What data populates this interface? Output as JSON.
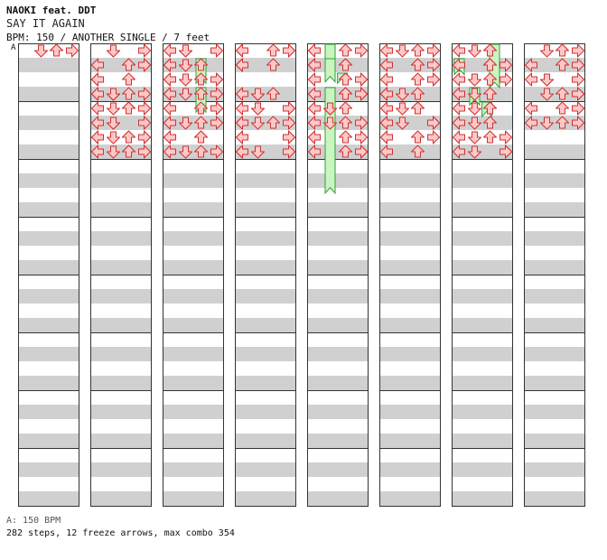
{
  "header": {
    "artist": "NAOKI feat. DDT",
    "title": "SAY IT AGAIN",
    "meta": "BPM: 150 / ANOTHER SINGLE / 7 feet",
    "marker": "A"
  },
  "footer": {
    "bpm_legend": "A: 150 BPM",
    "stats": "282 steps, 12 freeze arrows, max combo 354"
  },
  "colors": {
    "note_red_fill": "#ffc8c8",
    "note_red_stroke": "#cc3333",
    "note_blue_fill": "#9fd0ff",
    "note_blue_stroke": "#2a6fc0",
    "freeze_fill": "#c8f5c0",
    "freeze_stroke": "#3a9a3a",
    "stripe": "#d0d0d0"
  },
  "chart_data": {
    "type": "step-chart",
    "lanes": [
      "left",
      "down",
      "up",
      "right"
    ],
    "columns": 8,
    "measures_per_column": 8,
    "freezes": [
      [
        3,
        2,
        1,
        1.7
      ],
      [
        3,
        2,
        3,
        1.7
      ],
      [
        5,
        1,
        0,
        1.4
      ],
      [
        5,
        1,
        1,
        1.6
      ],
      [
        5,
        1,
        3,
        7.3
      ],
      [
        5,
        1.8,
        2,
        0.7
      ],
      [
        6,
        7,
        1,
        0.9
      ],
      [
        6,
        7,
        0,
        3.0
      ],
      [
        7,
        0,
        1,
        1.1
      ],
      [
        7,
        1,
        3,
        1.2
      ],
      [
        7,
        1.8,
        4,
        1.0
      ],
      [
        8,
        6.1,
        3,
        2.2
      ]
    ],
    "notes": [
      [
        1,
        0,
        0,
        3
      ],
      [
        1,
        1,
        0,
        2
      ],
      [
        1,
        2,
        0,
        2
      ],
      [
        1,
        4,
        0,
        1
      ],
      [
        2,
        0,
        0,
        1
      ],
      [
        2,
        1,
        0,
        1
      ],
      [
        2,
        2,
        0,
        3
      ],
      [
        2,
        0,
        1,
        3
      ],
      [
        2,
        0.5,
        1,
        2
      ],
      [
        2,
        1,
        1,
        3
      ],
      [
        2,
        2,
        1,
        0
      ],
      [
        2,
        2.5,
        1,
        2
      ],
      [
        2,
        0,
        2,
        0
      ],
      [
        2,
        1,
        2,
        2
      ],
      [
        2,
        2,
        2,
        0
      ],
      [
        2,
        3,
        2,
        0
      ],
      [
        2,
        0,
        3,
        0
      ],
      [
        2,
        0,
        3,
        1
      ],
      [
        2,
        1,
        3,
        2
      ],
      [
        2,
        1,
        3,
        3
      ],
      [
        2,
        2,
        3,
        0
      ],
      [
        2,
        2,
        3,
        1
      ],
      [
        2,
        3,
        3,
        1
      ],
      [
        2,
        0,
        4,
        2
      ],
      [
        2,
        0,
        4,
        3
      ],
      [
        2,
        1,
        4,
        1
      ],
      [
        2,
        1,
        4,
        2
      ],
      [
        2,
        2,
        4,
        2
      ],
      [
        2,
        3,
        4,
        0
      ],
      [
        2,
        3,
        4,
        3
      ],
      [
        2,
        0,
        5,
        0
      ],
      [
        2,
        1,
        5,
        1
      ],
      [
        2,
        2,
        5,
        3
      ],
      [
        2,
        3,
        5,
        1
      ],
      [
        2,
        0,
        6,
        0
      ],
      [
        2,
        1,
        6,
        1
      ],
      [
        2,
        1,
        6,
        2
      ],
      [
        2,
        2,
        6,
        2
      ],
      [
        2,
        2,
        6,
        3
      ],
      [
        2,
        3,
        6,
        0
      ],
      [
        2,
        3,
        6,
        3
      ],
      [
        2,
        0,
        7,
        0
      ],
      [
        2,
        1,
        7,
        2
      ],
      [
        2,
        2,
        7,
        2
      ],
      [
        2,
        2,
        7,
        3
      ],
      [
        2,
        3,
        7,
        1
      ],
      [
        3,
        0,
        0,
        3
      ],
      [
        3,
        0.5,
        0,
        1
      ],
      [
        3,
        1,
        0,
        0
      ],
      [
        3,
        2,
        0,
        1
      ],
      [
        3,
        0,
        1,
        0
      ],
      [
        3,
        0.5,
        1,
        0
      ],
      [
        3,
        1,
        1,
        1
      ],
      [
        3,
        1,
        1,
        2
      ],
      [
        3,
        2,
        1,
        0
      ],
      [
        3,
        3,
        1,
        1
      ],
      [
        3,
        0,
        2,
        0
      ],
      [
        3,
        0,
        2,
        1
      ],
      [
        3,
        1,
        2,
        0
      ],
      [
        3,
        1,
        2,
        2
      ],
      [
        3,
        2,
        2,
        3
      ],
      [
        3,
        3,
        2,
        3
      ],
      [
        3,
        0,
        3,
        0
      ],
      [
        3,
        1,
        3,
        1
      ],
      [
        3,
        1,
        3,
        3
      ],
      [
        3,
        2,
        3,
        0
      ],
      [
        3,
        2.5,
        3,
        2
      ],
      [
        3,
        3,
        3,
        0
      ],
      [
        3,
        0,
        4,
        0
      ],
      [
        3,
        1,
        4,
        3
      ],
      [
        3,
        2,
        4,
        2
      ],
      [
        3,
        2.5,
        4,
        0
      ],
      [
        3,
        3,
        4,
        3
      ],
      [
        3,
        0,
        5,
        0
      ],
      [
        3,
        0.5,
        5,
        1
      ],
      [
        3,
        1,
        5,
        2
      ],
      [
        3,
        2,
        5,
        0
      ],
      [
        3,
        2,
        5,
        3
      ],
      [
        3,
        0,
        6,
        0
      ],
      [
        3,
        1,
        6,
        0
      ],
      [
        3,
        2,
        6,
        2
      ],
      [
        3,
        3,
        6,
        2
      ],
      [
        3,
        0,
        7,
        0
      ],
      [
        3,
        1,
        7,
        1
      ],
      [
        3,
        2,
        7,
        2
      ],
      [
        3,
        3,
        7,
        3
      ],
      [
        4,
        0,
        0,
        2
      ],
      [
        4,
        0,
        0,
        3
      ],
      [
        4,
        1,
        0,
        0
      ],
      [
        4,
        1.5,
        0,
        3
      ],
      [
        4,
        2,
        0,
        0
      ],
      [
        4,
        3,
        0,
        0
      ],
      [
        4,
        0,
        1,
        0
      ],
      [
        4,
        0.5,
        1,
        0
      ],
      [
        4,
        1,
        1,
        2
      ],
      [
        4,
        3,
        1,
        0
      ],
      [
        4,
        0,
        3,
        1
      ],
      [
        4,
        0.5,
        3,
        1
      ],
      [
        4,
        1,
        3,
        0
      ],
      [
        4,
        1.5,
        3,
        2
      ],
      [
        4,
        2,
        3,
        1
      ],
      [
        4,
        0,
        4,
        1
      ],
      [
        4,
        0,
        4,
        3
      ],
      [
        4,
        1,
        4,
        3
      ],
      [
        4,
        1.5,
        4,
        1
      ],
      [
        4,
        2,
        4,
        0
      ],
      [
        4,
        2,
        4,
        3
      ],
      [
        4,
        0,
        5,
        0
      ],
      [
        4,
        0,
        5,
        1
      ],
      [
        4,
        1,
        5,
        3
      ],
      [
        4,
        2,
        5,
        2
      ],
      [
        4,
        3,
        5,
        0
      ],
      [
        4,
        0,
        6,
        0
      ],
      [
        4,
        1,
        6,
        3
      ],
      [
        4,
        2,
        6,
        3
      ],
      [
        4,
        3,
        6,
        0
      ],
      [
        4,
        0,
        7,
        0
      ],
      [
        4,
        1,
        7,
        1
      ],
      [
        4,
        2,
        7,
        3
      ],
      [
        4,
        3,
        7,
        0
      ],
      [
        5,
        0,
        0,
        0
      ],
      [
        5,
        1,
        0,
        2
      ],
      [
        5,
        2,
        0,
        3
      ],
      [
        5,
        3,
        0,
        0
      ],
      [
        5,
        0,
        1,
        2
      ],
      [
        5,
        1,
        1,
        0
      ],
      [
        5,
        2,
        1,
        2
      ],
      [
        5,
        3,
        1,
        0
      ],
      [
        5,
        0,
        2,
        0
      ],
      [
        5,
        1,
        2,
        2
      ],
      [
        5,
        2,
        2,
        3
      ],
      [
        5,
        3,
        2,
        2
      ],
      [
        5,
        3,
        2,
        3
      ],
      [
        5,
        0,
        3,
        0
      ],
      [
        5,
        1,
        3,
        2
      ],
      [
        5,
        2,
        3,
        2
      ],
      [
        5,
        2,
        3,
        3
      ],
      [
        5,
        3,
        3,
        3
      ],
      [
        5,
        0,
        4,
        0
      ],
      [
        5,
        0.5,
        4,
        1
      ],
      [
        5,
        1,
        4,
        2
      ],
      [
        5,
        2,
        4,
        1
      ],
      [
        5,
        3,
        4,
        1
      ],
      [
        5,
        0,
        5,
        0
      ],
      [
        5,
        1,
        5,
        2
      ],
      [
        5,
        2,
        5,
        1
      ],
      [
        5,
        3,
        5,
        3
      ],
      [
        5,
        0,
        6,
        0
      ],
      [
        5,
        1,
        6,
        3
      ],
      [
        5,
        2,
        6,
        2
      ],
      [
        5,
        3,
        6,
        0
      ],
      [
        5,
        0,
        7,
        0
      ],
      [
        5,
        1,
        7,
        3
      ],
      [
        5,
        2,
        7,
        2
      ],
      [
        5,
        3,
        7,
        3
      ],
      [
        6,
        0,
        0,
        0
      ],
      [
        6,
        0.5,
        0,
        2
      ],
      [
        6,
        1,
        0,
        3
      ],
      [
        6,
        2,
        0,
        1
      ],
      [
        6,
        0,
        1,
        0
      ],
      [
        6,
        0.5,
        1,
        2
      ],
      [
        6,
        1,
        1,
        2
      ],
      [
        6,
        2,
        1,
        3
      ],
      [
        6,
        0,
        2,
        0
      ],
      [
        6,
        1,
        2,
        3
      ],
      [
        6,
        2,
        2,
        2
      ],
      [
        6,
        2.5,
        2,
        3
      ],
      [
        6,
        0,
        3,
        0
      ],
      [
        6,
        1,
        3,
        1
      ],
      [
        6,
        2,
        3,
        2
      ],
      [
        6,
        3,
        3,
        0
      ],
      [
        6,
        0,
        4,
        2
      ],
      [
        6,
        1,
        4,
        1
      ],
      [
        6,
        2,
        4,
        0
      ],
      [
        6,
        3,
        4,
        2
      ],
      [
        6,
        0,
        5,
        0
      ],
      [
        6,
        1,
        5,
        3
      ],
      [
        6,
        2,
        5,
        1
      ],
      [
        6,
        3,
        5,
        0
      ],
      [
        6,
        3,
        5,
        3
      ],
      [
        6,
        0,
        6,
        0
      ],
      [
        6,
        1,
        6,
        2
      ],
      [
        6,
        2,
        6,
        3
      ],
      [
        6,
        3,
        6,
        0
      ],
      [
        6,
        0,
        7,
        0
      ],
      [
        6,
        1,
        7,
        2
      ],
      [
        7,
        0,
        0,
        2
      ],
      [
        7,
        1,
        0,
        0
      ],
      [
        7,
        2,
        0,
        2
      ],
      [
        7,
        3,
        0,
        1
      ],
      [
        7,
        0,
        1,
        0
      ],
      [
        7,
        0.5,
        1,
        2
      ],
      [
        7,
        1,
        1,
        3
      ],
      [
        7,
        2,
        1,
        2
      ],
      [
        7,
        0,
        2,
        1
      ],
      [
        7,
        1,
        2,
        0
      ],
      [
        7,
        2,
        2,
        2
      ],
      [
        7,
        3,
        2,
        3
      ],
      [
        7,
        0,
        3,
        0
      ],
      [
        7,
        1,
        3,
        1
      ],
      [
        7,
        2,
        3,
        0
      ],
      [
        7,
        3,
        3,
        2
      ],
      [
        7,
        0,
        4,
        1
      ],
      [
        7,
        1,
        4,
        2
      ],
      [
        7,
        2,
        4,
        0
      ],
      [
        7,
        3,
        4,
        2
      ],
      [
        7,
        0,
        5,
        0
      ],
      [
        7,
        1,
        5,
        1
      ],
      [
        7,
        2,
        5,
        2
      ],
      [
        7,
        3,
        5,
        0
      ],
      [
        7,
        0,
        6,
        0
      ],
      [
        7,
        1,
        6,
        3
      ],
      [
        7,
        2,
        6,
        1
      ],
      [
        7,
        3,
        6,
        2
      ],
      [
        7,
        0,
        7,
        1
      ],
      [
        7,
        1,
        7,
        3
      ],
      [
        7,
        2,
        7,
        0
      ],
      [
        7,
        3,
        7,
        3
      ],
      [
        8,
        0,
        0,
        1
      ],
      [
        8,
        0.5,
        0,
        3
      ],
      [
        8,
        1,
        0,
        2
      ],
      [
        8,
        2,
        0,
        2
      ],
      [
        8,
        0,
        1,
        0
      ],
      [
        8,
        1,
        1,
        3
      ],
      [
        8,
        2,
        1,
        2
      ],
      [
        8,
        2.5,
        1,
        2
      ],
      [
        8,
        0,
        2,
        3
      ],
      [
        8,
        1,
        2,
        1
      ],
      [
        8,
        2,
        2,
        0
      ],
      [
        8,
        3,
        2,
        1
      ],
      [
        8,
        0,
        3,
        1
      ],
      [
        8,
        1,
        3,
        3
      ],
      [
        8,
        2,
        3,
        2
      ],
      [
        8,
        3,
        3,
        3
      ],
      [
        8,
        0,
        4,
        0
      ],
      [
        8,
        1,
        4,
        2
      ],
      [
        8,
        2,
        4,
        3
      ],
      [
        8,
        3,
        4,
        3
      ],
      [
        8,
        0,
        5,
        0
      ],
      [
        8,
        1,
        5,
        3
      ],
      [
        8,
        2,
        5,
        2
      ],
      [
        8,
        3,
        5,
        1
      ]
    ]
  }
}
